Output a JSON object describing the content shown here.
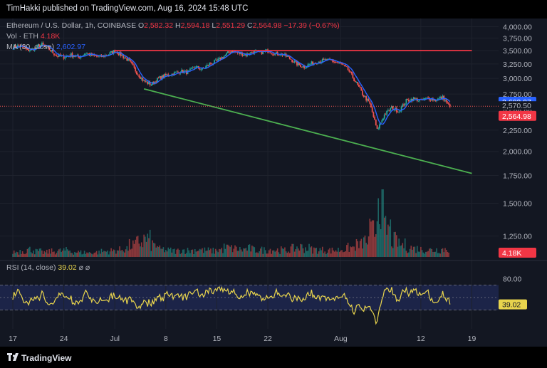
{
  "header": {
    "published_text": "TimHakki published on TradingView.com, Aug 16, 2024 15:48 UTC"
  },
  "legend": {
    "symbol": "Ethereum / U.S. Dollar, 1h, COINBASE",
    "o_label": "O",
    "o_value": "2,582.32",
    "h_label": "H",
    "h_value": "2,594.18",
    "l_label": "L",
    "l_value": "2,551.29",
    "c_label": "C",
    "c_value": "2,564.98",
    "change": "−17.39 (−0.67%)",
    "vol_label": "Vol · ETH",
    "vol_value": "4.18K",
    "ma_label": "MA (30, close)",
    "ma_value": "2,602.97",
    "rsi_label": "RSI (14, close)",
    "rsi_value": "39.02"
  },
  "footer": {
    "logo_text": "TradingView"
  },
  "colors": {
    "background": "#131722",
    "up": "#26a69a",
    "down": "#ef5350",
    "ma": "#2962ff",
    "resistance": "#f23645",
    "support": "#4caf50",
    "rsi": "#e8d44d",
    "rsi_band": "#1c2448"
  },
  "chart_data": [
    {
      "type": "line",
      "title": "Ethereum / U.S. Dollar, 1h, COINBASE",
      "yscale": "log",
      "ylim": [
        1100,
        4150
      ],
      "y_ticks": [
        "4,000.00",
        "3,750.00",
        "3,500.00",
        "3,250.00",
        "3,000.00",
        "2,750.00",
        "2,500.00",
        "2,250.00",
        "2,000.00",
        "1,750.00",
        "1,500.00",
        "1,250.00"
      ],
      "x_ticks": [
        "17",
        "24",
        "Jul",
        "8",
        "15",
        "22",
        "Aug",
        "12",
        "19"
      ],
      "x_tick_days": [
        0,
        7,
        14,
        21,
        28,
        35,
        45,
        56,
        63
      ],
      "price_series": {
        "name": "ETH/USD",
        "day": [
          0,
          1,
          2,
          3,
          4,
          5,
          6,
          7,
          8,
          9,
          10,
          11,
          12,
          13,
          14,
          15,
          16,
          17,
          18,
          19,
          20,
          21,
          22,
          23,
          24,
          25,
          26,
          27,
          28,
          29,
          30,
          31,
          32,
          33,
          34,
          35,
          36,
          37,
          38,
          39,
          40,
          41,
          42,
          43,
          44,
          45,
          46,
          47,
          48,
          49,
          50,
          51,
          52,
          53,
          54,
          55,
          56,
          57,
          58,
          59,
          60
        ],
        "close": [
          3560,
          3600,
          3500,
          3540,
          3620,
          3520,
          3400,
          3380,
          3420,
          3370,
          3450,
          3400,
          3380,
          3420,
          3500,
          3400,
          3300,
          3100,
          2950,
          2900,
          3000,
          3050,
          3080,
          3120,
          3100,
          3200,
          3150,
          3250,
          3300,
          3400,
          3500,
          3450,
          3420,
          3480,
          3460,
          3500,
          3440,
          3430,
          3350,
          3250,
          3200,
          3260,
          3300,
          3320,
          3300,
          3250,
          3150,
          2950,
          2750,
          2600,
          2250,
          2450,
          2550,
          2500,
          2650,
          2680,
          2650,
          2690,
          2660,
          2700,
          2565
        ]
      },
      "ma_series": {
        "name": "MA (30, close)",
        "last": 2602.97
      },
      "trendlines": [
        {
          "name": "resistance",
          "from": [
            14,
            3500
          ],
          "to": [
            63,
            3500
          ]
        },
        {
          "name": "support",
          "from": [
            18,
            2830
          ],
          "to": [
            63,
            1770
          ]
        }
      ],
      "price_labels": [
        {
          "name": "ma-last",
          "value": "2,602.97",
          "level": 2602.97
        },
        {
          "name": "price-line",
          "value": "2,570.50",
          "level": 2570.5
        },
        {
          "name": "last-close",
          "value": "2,564.98",
          "level": 2564.98
        }
      ]
    },
    {
      "type": "bar",
      "title": "Vol · ETH",
      "last": "4.18K",
      "day_values": [
        1.1,
        1.3,
        1.6,
        1.2,
        1.0,
        1.2,
        1.3,
        1.4,
        1.1,
        1.0,
        0.9,
        1.0,
        1.2,
        1.3,
        1.5,
        1.8,
        2.5,
        3.2,
        3.8,
        2.6,
        1.6,
        1.4,
        1.3,
        1.5,
        1.4,
        1.6,
        1.4,
        1.3,
        1.6,
        2.0,
        1.8,
        1.6,
        1.8,
        1.5,
        1.5,
        1.6,
        1.5,
        1.4,
        1.8,
        2.1,
        1.9,
        1.6,
        1.5,
        1.4,
        1.5,
        1.7,
        2.0,
        2.6,
        3.4,
        5.5,
        14.0,
        6.0,
        3.5,
        2.6,
        2.0,
        1.8,
        1.6,
        1.5,
        1.6,
        1.7,
        1.3
      ]
    },
    {
      "type": "line",
      "title": "RSI (14, close)",
      "ylim": [
        0,
        100
      ],
      "y_ticks": [
        "80.00"
      ],
      "levels": [
        70,
        50,
        30
      ],
      "last": "39.02",
      "rsi_last": 39.02
    }
  ]
}
